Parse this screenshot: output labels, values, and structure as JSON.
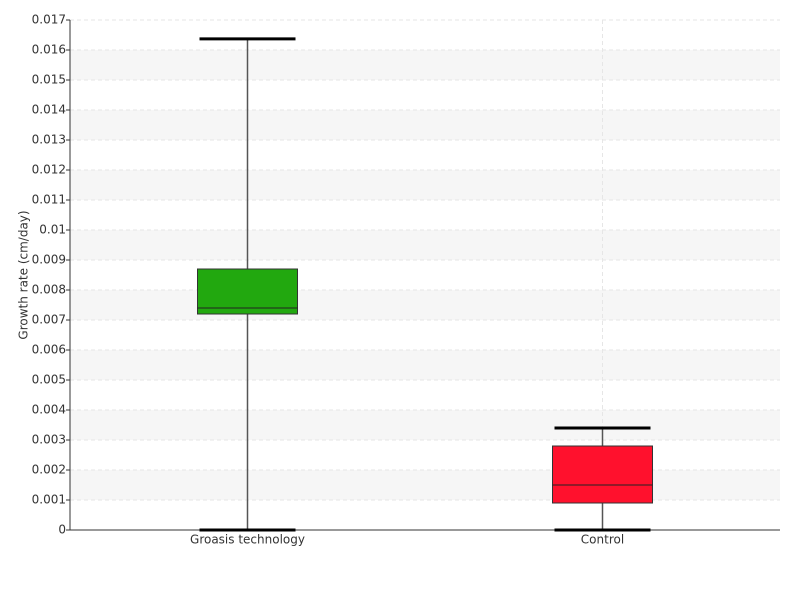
{
  "chart_data": {
    "type": "box",
    "y_label": "Growth rate (cm/day)",
    "categories": [
      "Groasis technology",
      "Control"
    ],
    "boxes": [
      {
        "min": 0,
        "q1": 0.0072,
        "median": 0.0074,
        "q3": 0.0087,
        "max": 0.01637,
        "color": "#22a80f"
      },
      {
        "min": 0,
        "q1": 0.0009,
        "median": 0.0015,
        "q3": 0.0028,
        "max": 0.0034,
        "color": "#ff112d"
      }
    ],
    "ylim": [
      0,
      0.017
    ],
    "yticks": [
      0,
      0.001,
      0.002,
      0.003,
      0.004,
      0.005,
      0.006,
      0.007,
      0.008,
      0.009,
      0.01,
      0.011,
      0.012,
      0.013,
      0.014,
      0.015,
      0.016,
      0.017
    ],
    "grid": true
  }
}
